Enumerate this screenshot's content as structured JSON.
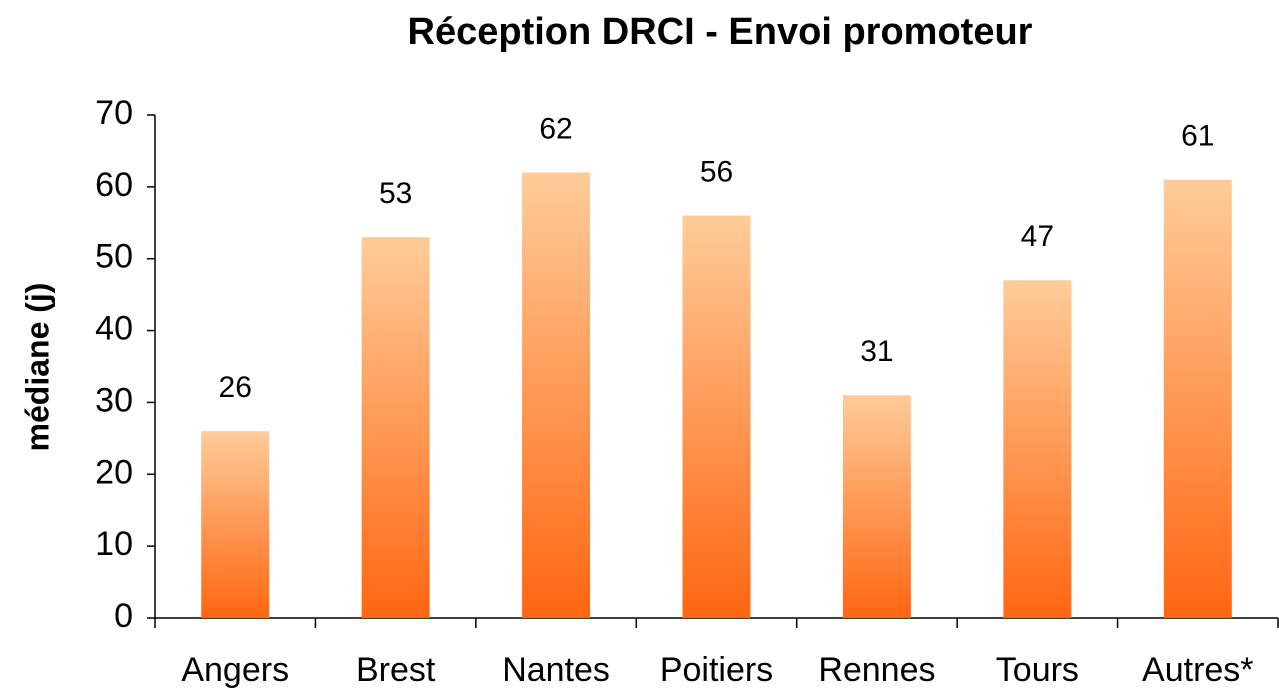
{
  "chart_data": {
    "type": "bar",
    "title": "Réception DRCI - Envoi promoteur",
    "y_label": "médiane (j)",
    "categories": [
      "Angers",
      "Brest",
      "Nantes",
      "Poitiers",
      "Rennes",
      "Tours",
      "Autres*"
    ],
    "values": [
      26,
      53,
      62,
      56,
      31,
      47,
      61
    ],
    "color": {
      "top": "#ffcc99",
      "bottom": "#ff6611"
    },
    "ylim": [
      0,
      70
    ],
    "yticks": [
      0,
      10,
      20,
      30,
      40,
      50,
      60,
      70
    ],
    "grid": false,
    "data_labels": true
  }
}
